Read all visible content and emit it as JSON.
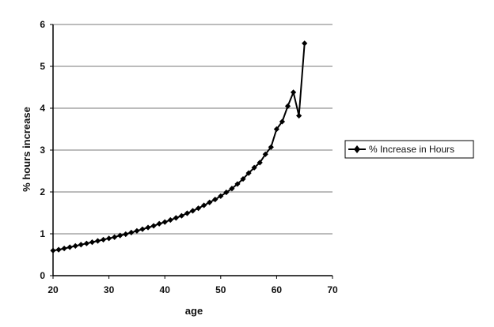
{
  "chart_data": {
    "type": "line",
    "title": "",
    "xlabel": "age",
    "ylabel": "% hours increase",
    "xlim": [
      20,
      70
    ],
    "ylim": [
      0,
      6
    ],
    "xticks": [
      20,
      30,
      40,
      50,
      60,
      70
    ],
    "yticks": [
      0,
      1,
      2,
      3,
      4,
      5,
      6
    ],
    "grid": "horizontal",
    "legend_position": "right",
    "series": [
      {
        "name": "% Increase in Hours",
        "color": "#000000",
        "marker": "diamond",
        "x": [
          20,
          21,
          22,
          23,
          24,
          25,
          26,
          27,
          28,
          29,
          30,
          31,
          32,
          33,
          34,
          35,
          36,
          37,
          38,
          39,
          40,
          41,
          42,
          43,
          44,
          45,
          46,
          47,
          48,
          49,
          50,
          51,
          52,
          53,
          54,
          55,
          56,
          57,
          58,
          59,
          60,
          61,
          62,
          63,
          64,
          65
        ],
        "y": [
          0.6,
          0.62,
          0.65,
          0.68,
          0.71,
          0.74,
          0.77,
          0.8,
          0.83,
          0.86,
          0.89,
          0.92,
          0.96,
          0.99,
          1.03,
          1.07,
          1.11,
          1.15,
          1.19,
          1.24,
          1.28,
          1.33,
          1.38,
          1.43,
          1.49,
          1.55,
          1.61,
          1.68,
          1.75,
          1.82,
          1.9,
          1.99,
          2.08,
          2.19,
          2.31,
          2.45,
          2.58,
          2.7,
          2.9,
          3.07,
          3.5,
          3.68,
          4.05,
          4.38,
          3.82,
          5.55
        ]
      }
    ]
  }
}
